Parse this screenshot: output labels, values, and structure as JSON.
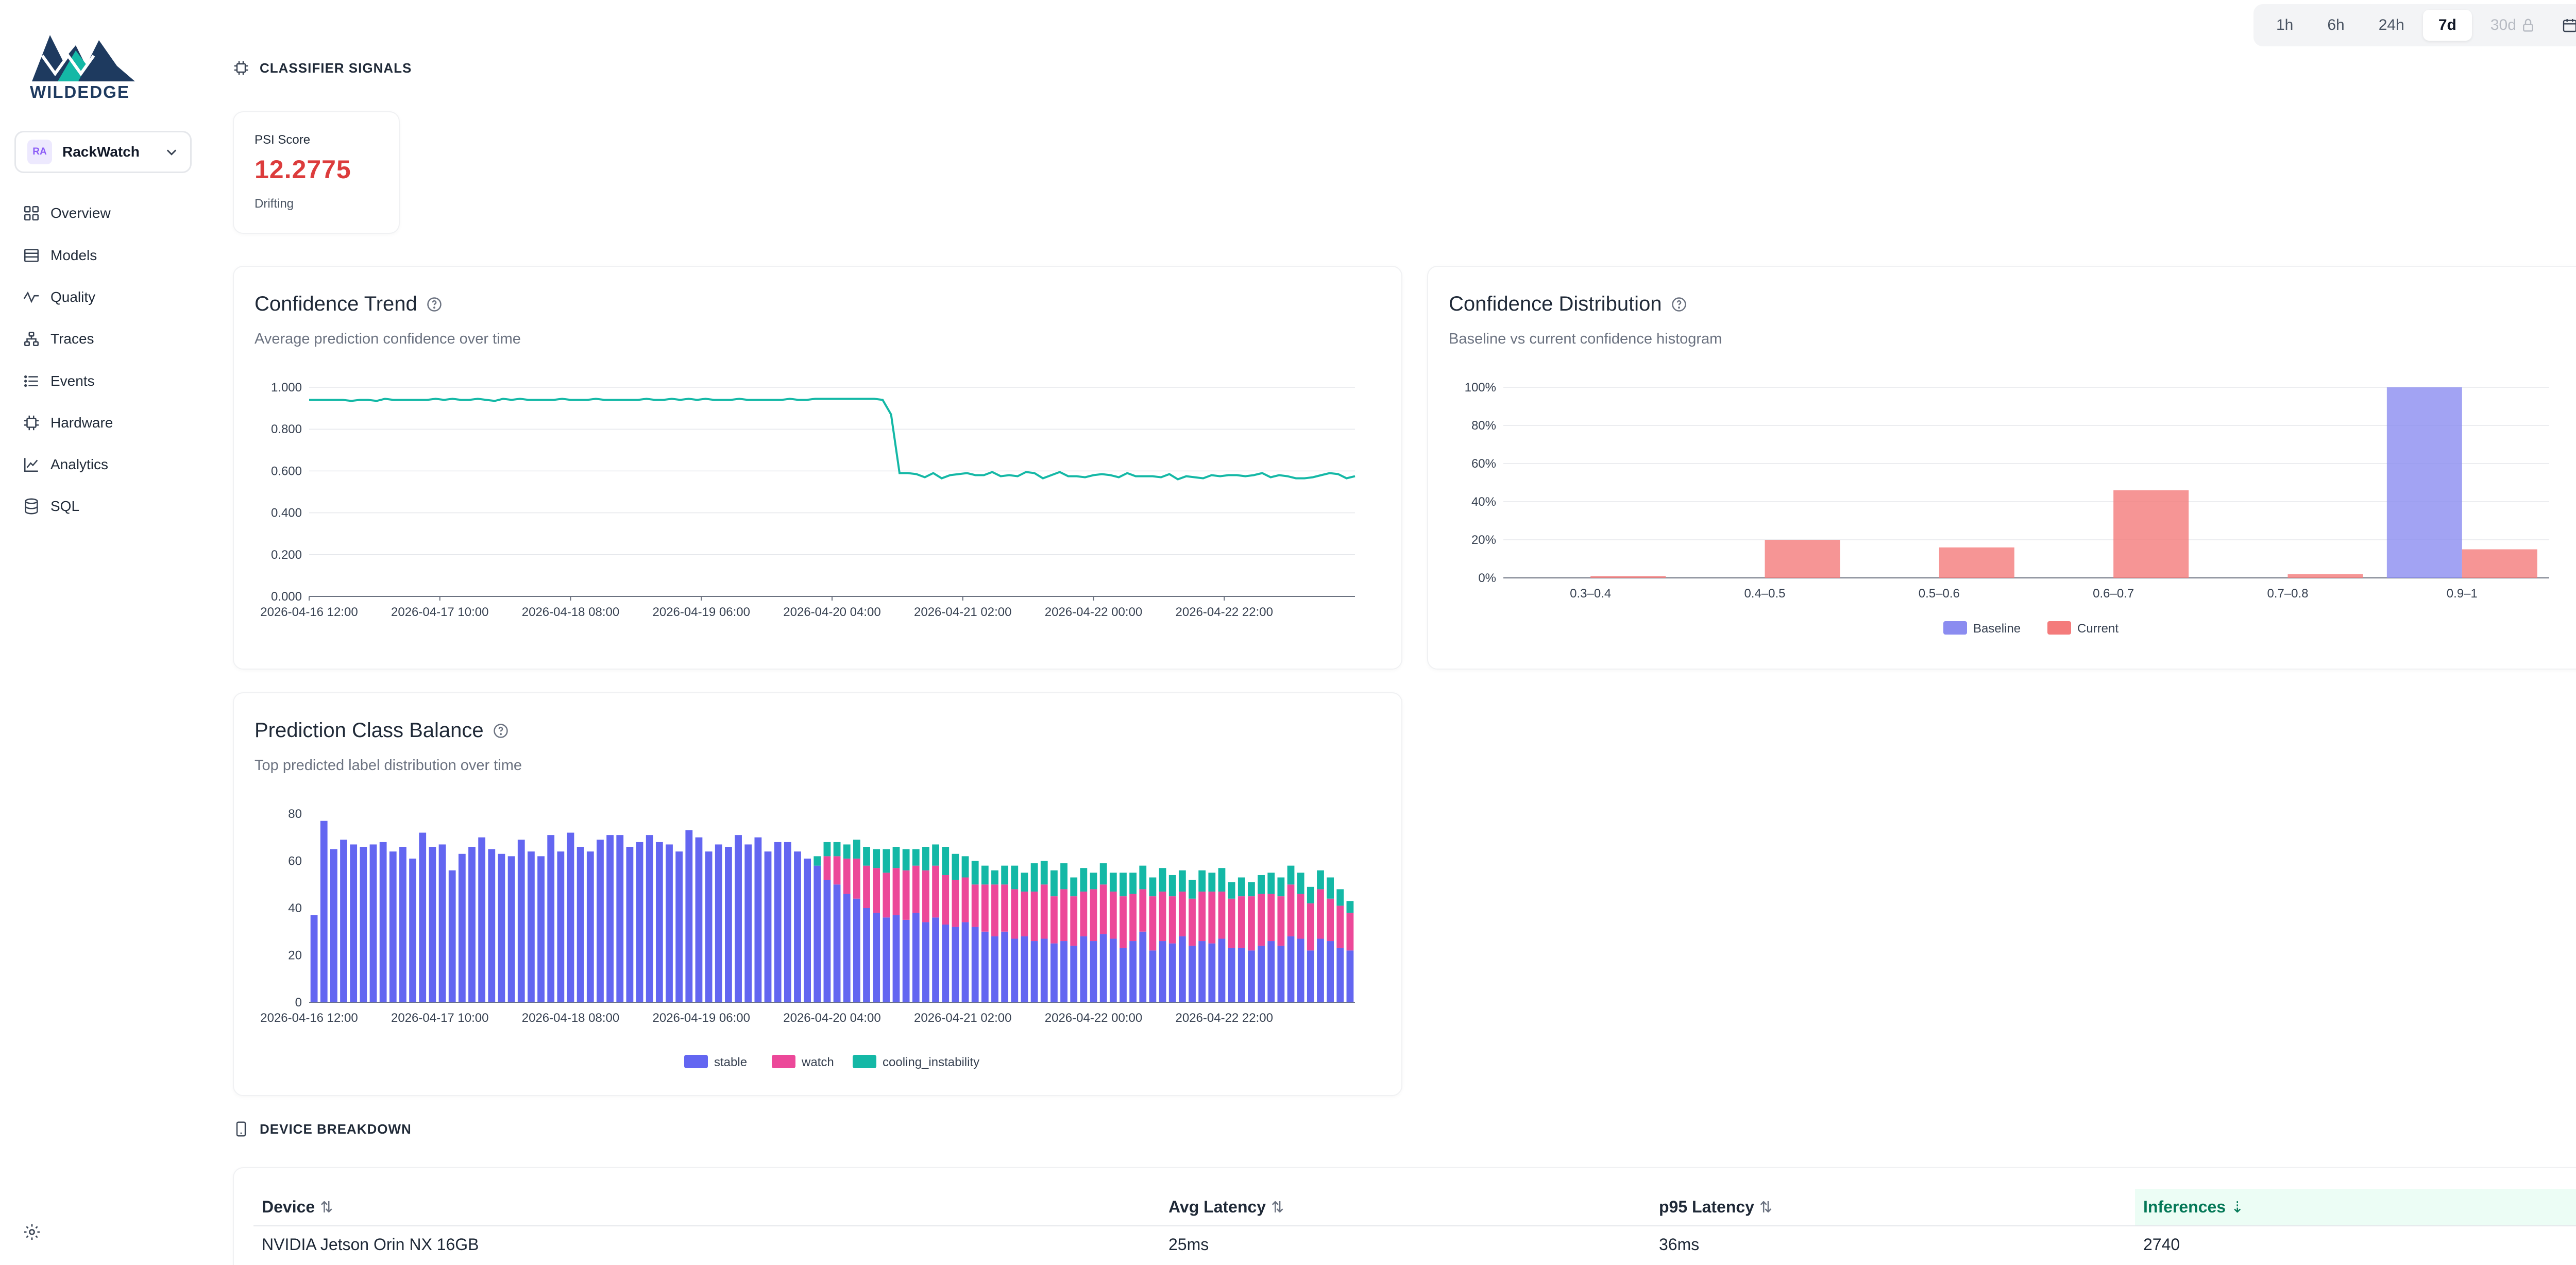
{
  "brand": {
    "logo_text": "WILDEDGE"
  },
  "app_selector": {
    "badge": "RA",
    "name": "RackWatch"
  },
  "nav": [
    {
      "label": "Overview",
      "icon": "grid-icon"
    },
    {
      "label": "Models",
      "icon": "layers-icon"
    },
    {
      "label": "Quality",
      "icon": "activity-icon"
    },
    {
      "label": "Traces",
      "icon": "network-icon"
    },
    {
      "label": "Events",
      "icon": "list-icon"
    },
    {
      "label": "Hardware",
      "icon": "chip-icon"
    },
    {
      "label": "Analytics",
      "icon": "trend-icon"
    },
    {
      "label": "SQL",
      "icon": "database-icon"
    }
  ],
  "time_range": {
    "options": [
      "1h",
      "6h",
      "24h",
      "7d",
      "30d"
    ],
    "selected": "7d",
    "locked": "30d"
  },
  "classifier_section": {
    "title": "CLASSIFIER SIGNALS"
  },
  "psi": {
    "label": "PSI Score",
    "value": "12.2775",
    "status": "Drifting",
    "value_color": "#dc3c3c"
  },
  "trend": {
    "title": "Confidence Trend",
    "subtitle": "Average prediction confidence over time",
    "chart_data": {
      "type": "line",
      "x_ticks": [
        "2026-04-16 12:00",
        "2026-04-17 10:00",
        "2026-04-18 08:00",
        "2026-04-19 06:00",
        "2026-04-20 04:00",
        "2026-04-21 02:00",
        "2026-04-22 00:00",
        "2026-04-22 22:00"
      ],
      "y_ticks": [
        "0.000",
        "0.200",
        "0.400",
        "0.600",
        "0.800",
        "1.000"
      ],
      "ylim": [
        0,
        1
      ],
      "color": "#14b8a6",
      "values": [
        0.94,
        0.94,
        0.94,
        0.94,
        0.94,
        0.935,
        0.94,
        0.94,
        0.935,
        0.945,
        0.94,
        0.94,
        0.94,
        0.94,
        0.94,
        0.945,
        0.94,
        0.945,
        0.94,
        0.94,
        0.945,
        0.94,
        0.935,
        0.945,
        0.94,
        0.945,
        0.94,
        0.94,
        0.94,
        0.94,
        0.945,
        0.94,
        0.94,
        0.94,
        0.945,
        0.94,
        0.94,
        0.94,
        0.94,
        0.94,
        0.945,
        0.94,
        0.94,
        0.945,
        0.94,
        0.945,
        0.94,
        0.945,
        0.94,
        0.94,
        0.94,
        0.945,
        0.94,
        0.94,
        0.94,
        0.94,
        0.94,
        0.945,
        0.94,
        0.94,
        0.945,
        0.945,
        0.945,
        0.945,
        0.945,
        0.945,
        0.945,
        0.945,
        0.94,
        0.87,
        0.59,
        0.59,
        0.585,
        0.57,
        0.59,
        0.565,
        0.58,
        0.585,
        0.59,
        0.58,
        0.58,
        0.595,
        0.575,
        0.58,
        0.575,
        0.595,
        0.59,
        0.565,
        0.58,
        0.595,
        0.575,
        0.575,
        0.57,
        0.58,
        0.585,
        0.58,
        0.57,
        0.59,
        0.575,
        0.575,
        0.575,
        0.57,
        0.585,
        0.56,
        0.575,
        0.57,
        0.565,
        0.58,
        0.575,
        0.58,
        0.58,
        0.575,
        0.58,
        0.59,
        0.57,
        0.58,
        0.575,
        0.565,
        0.565,
        0.57,
        0.58,
        0.59,
        0.585,
        0.565,
        0.575
      ]
    }
  },
  "distribution": {
    "title": "Confidence Distribution",
    "subtitle": "Baseline vs current confidence histogram",
    "chart_data": {
      "type": "bar",
      "categories": [
        "0.3–0.4",
        "0.4–0.5",
        "0.5–0.6",
        "0.6–0.7",
        "0.7–0.8",
        "0.9–1"
      ],
      "y_ticks": [
        "0%",
        "20%",
        "40%",
        "60%",
        "80%",
        "100%"
      ],
      "ylim": [
        0,
        100
      ],
      "series": [
        {
          "name": "Baseline",
          "color": "#8b8cf0",
          "values": [
            0,
            0,
            0,
            0,
            0,
            100
          ]
        },
        {
          "name": "Current",
          "color": "#f47b7b",
          "values": [
            1,
            20,
            16,
            46,
            2,
            15
          ]
        }
      ]
    }
  },
  "balance": {
    "title": "Prediction Class Balance",
    "subtitle": "Top predicted label distribution over time",
    "chart_data": {
      "type": "bar",
      "stacked": true,
      "x_ticks": [
        "2026-04-16 12:00",
        "2026-04-17 10:00",
        "2026-04-18 08:00",
        "2026-04-19 06:00",
        "2026-04-20 04:00",
        "2026-04-21 02:00",
        "2026-04-22 00:00",
        "2026-04-22 22:00"
      ],
      "y_ticks": [
        "0",
        "20",
        "40",
        "60",
        "80"
      ],
      "ylim": [
        0,
        80
      ],
      "series": [
        {
          "name": "stable",
          "color": "#6366f1",
          "values": [
            37,
            77,
            65,
            69,
            67,
            66,
            67,
            68,
            64,
            66,
            61,
            72,
            66,
            67,
            56,
            63,
            66,
            70,
            65,
            63,
            62,
            69,
            64,
            62,
            71,
            64,
            72,
            66,
            64,
            69,
            71,
            71,
            66,
            68,
            71,
            68,
            67,
            64,
            73,
            70,
            64,
            67,
            66,
            71,
            67,
            70,
            64,
            68,
            68,
            64,
            61,
            58,
            52,
            50,
            46,
            44,
            40,
            38,
            36,
            37,
            35,
            38,
            34,
            36,
            33,
            32,
            34,
            32,
            30,
            28,
            30,
            27,
            28,
            26,
            27,
            25,
            26,
            24,
            28,
            26,
            29,
            27,
            23,
            26,
            30,
            22,
            26,
            25,
            28,
            24,
            26,
            25,
            27,
            23,
            23,
            22,
            24,
            26,
            24,
            28,
            27,
            22,
            27,
            26,
            23,
            22
          ]
        },
        {
          "name": "watch",
          "color": "#ec4899",
          "values": [
            0,
            0,
            0,
            0,
            0,
            0,
            0,
            0,
            0,
            0,
            0,
            0,
            0,
            0,
            0,
            0,
            0,
            0,
            0,
            0,
            0,
            0,
            0,
            0,
            0,
            0,
            0,
            0,
            0,
            0,
            0,
            0,
            0,
            0,
            0,
            0,
            0,
            0,
            0,
            0,
            0,
            0,
            0,
            0,
            0,
            0,
            0,
            0,
            0,
            0,
            0,
            0,
            10,
            12,
            15,
            17,
            18,
            19,
            19,
            20,
            21,
            20,
            22,
            22,
            21,
            20,
            19,
            18,
            20,
            22,
            20,
            21,
            19,
            21,
            23,
            20,
            22,
            21,
            19,
            22,
            21,
            20,
            22,
            20,
            18,
            23,
            21,
            20,
            19,
            20,
            21,
            22,
            20,
            21,
            22,
            23,
            22,
            20,
            21,
            22,
            19,
            20,
            21,
            18,
            18,
            16
          ]
        },
        {
          "name": "cooling_instability",
          "color": "#14b8a6",
          "values": [
            0,
            0,
            0,
            0,
            0,
            0,
            0,
            0,
            0,
            0,
            0,
            0,
            0,
            0,
            0,
            0,
            0,
            0,
            0,
            0,
            0,
            0,
            0,
            0,
            0,
            0,
            0,
            0,
            0,
            0,
            0,
            0,
            0,
            0,
            0,
            0,
            0,
            0,
            0,
            0,
            0,
            0,
            0,
            0,
            0,
            0,
            0,
            0,
            0,
            0,
            0,
            4,
            6,
            6,
            6,
            8,
            8,
            8,
            10,
            9,
            9,
            7,
            10,
            9,
            12,
            11,
            9,
            10,
            8,
            6,
            8,
            10,
            8,
            12,
            10,
            11,
            11,
            8,
            10,
            7,
            9,
            8,
            10,
            9,
            10,
            8,
            10,
            9,
            9,
            8,
            9,
            8,
            10,
            7,
            8,
            6,
            8,
            9,
            8,
            8,
            9,
            7,
            8,
            9,
            7,
            5
          ]
        }
      ]
    }
  },
  "device_section": {
    "title": "DEVICE BREAKDOWN"
  },
  "device_table": {
    "columns": [
      "Device",
      "Avg Latency",
      "p95 Latency",
      "Inferences"
    ],
    "rows": [
      {
        "device": "NVIDIA Jetson Orin NX 16GB",
        "avg": "25ms",
        "p95": "36ms",
        "inferences": "2740"
      }
    ]
  }
}
